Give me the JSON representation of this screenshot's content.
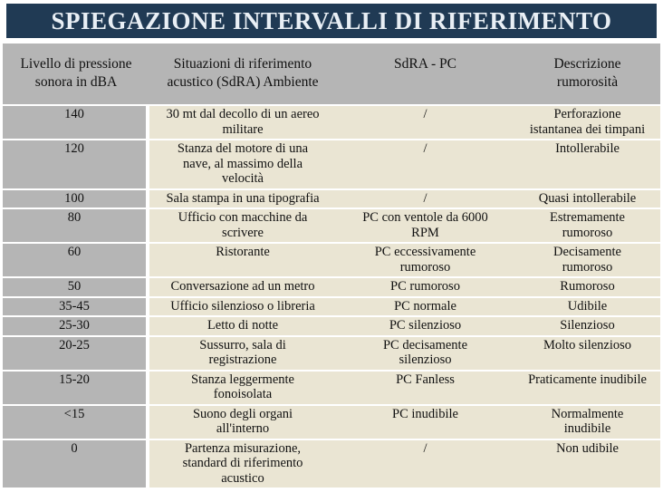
{
  "title": "SPIEGAZIONE INTERVALLI DI RIFERIMENTO",
  "colors": {
    "title_bar_bg": "#203a54",
    "title_text": "#e9eff5",
    "header_bg": "#b5b5b5",
    "level_column_bg": "#b5b5b5",
    "row_bg": "#eae5d3",
    "separator": "#ffffff",
    "body_text": "#111111"
  },
  "table": {
    "headers": [
      "Livello di pressione\nsonora in dBA",
      "Situazioni di riferimento\nacustico (SdRA) Ambiente",
      "SdRA - PC",
      "Descrizione\nrumorosità"
    ],
    "rows": [
      {
        "level": "140",
        "ambient": "30 mt dal decollo di un aereo\nmilitare",
        "pc": "/",
        "desc": "Perforazione\nistantanea dei timpani"
      },
      {
        "level": "120",
        "ambient": "Stanza del motore di una\nnave, al massimo della\nvelocità",
        "pc": "/",
        "desc": "Intollerabile"
      },
      {
        "level": "100",
        "ambient": "Sala stampa in una tipografia",
        "pc": "/",
        "desc": "Quasi intollerabile"
      },
      {
        "level": "80",
        "ambient": "Ufficio con macchine da\nscrivere",
        "pc": "PC con ventole da 6000\nRPM",
        "desc": "Estremamente\nrumoroso"
      },
      {
        "level": "60",
        "ambient": "Ristorante",
        "pc": "PC eccessivamente\nrumoroso",
        "desc": "Decisamente\nrumoroso"
      },
      {
        "level": "50",
        "ambient": "Conversazione ad un metro",
        "pc": "PC rumoroso",
        "desc": "Rumoroso"
      },
      {
        "level": "35-45",
        "ambient": "Ufficio silenzioso o libreria",
        "pc": "PC normale",
        "desc": "Udibile"
      },
      {
        "level": "25-30",
        "ambient": "Letto di notte",
        "pc": "PC silenzioso",
        "desc": "Silenzioso"
      },
      {
        "level": "20-25",
        "ambient": "Sussurro, sala di\nregistrazione",
        "pc": "PC decisamente\nsilenzioso",
        "desc": "Molto silenzioso"
      },
      {
        "level": "15-20",
        "ambient": "Stanza leggermente\nfonoisolata",
        "pc": "PC Fanless",
        "desc": "Praticamente inudibile"
      },
      {
        "level": "<15",
        "ambient": "Suono degli organi\nall'interno",
        "pc": "PC inudibile",
        "desc": "Normalmente\ninudibile"
      },
      {
        "level": "0",
        "ambient": "Partenza misurazione,\nstandard di riferimento\nacustico",
        "pc": "/",
        "desc": "Non udibile"
      }
    ]
  }
}
